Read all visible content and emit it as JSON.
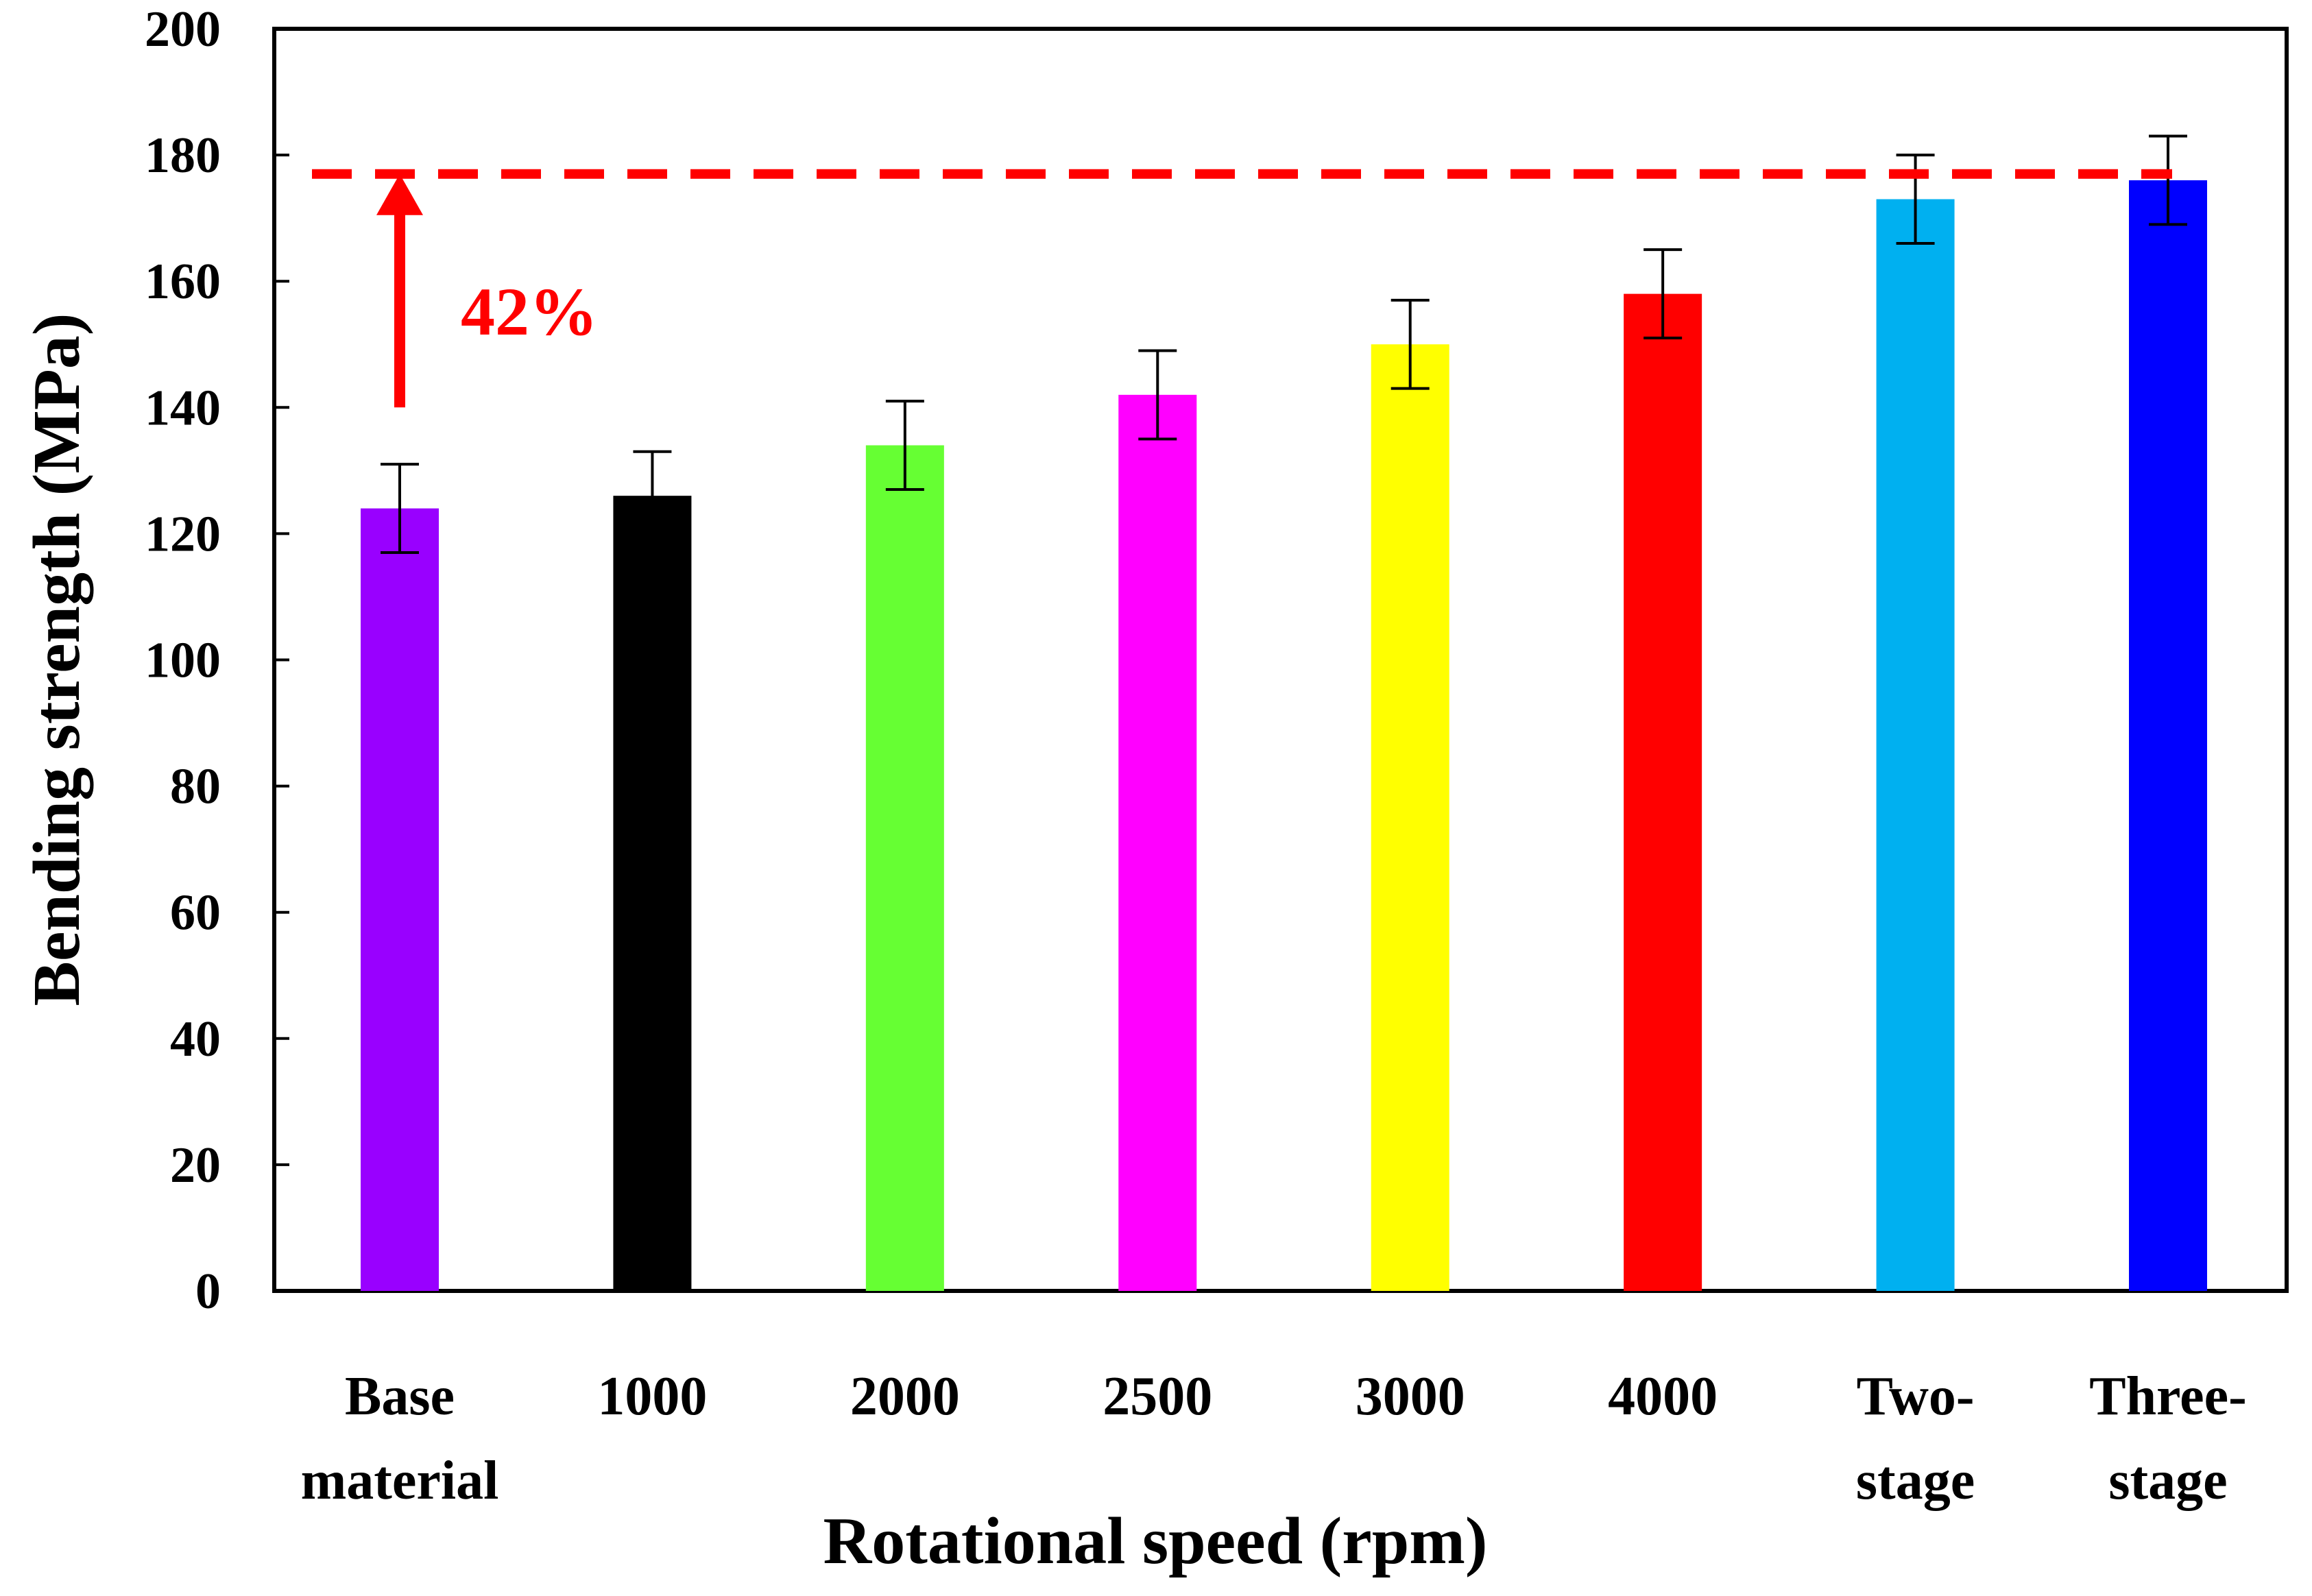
{
  "chart_data": {
    "type": "bar",
    "title": "",
    "xlabel": "Rotational speed (rpm)",
    "ylabel": "Bending strength (MPa)",
    "ylim": [
      0,
      200
    ],
    "yticks": [
      0,
      20,
      40,
      60,
      80,
      100,
      120,
      140,
      160,
      180,
      200
    ],
    "grid": false,
    "categories": [
      [
        "Base",
        "material"
      ],
      [
        "1000"
      ],
      [
        "2000"
      ],
      [
        "2500"
      ],
      [
        "3000"
      ],
      [
        "4000"
      ],
      [
        "Two-",
        "stage"
      ],
      [
        "Three-",
        "stage"
      ]
    ],
    "values": [
      124,
      126,
      134,
      142,
      150,
      158,
      173,
      176
    ],
    "errors": [
      7,
      7,
      7,
      7,
      7,
      7,
      7,
      7
    ],
    "colors": [
      "#9900FF",
      "#000000",
      "#66FF33",
      "#FF00FF",
      "#FFFF00",
      "#FF0000",
      "#00B0F0",
      "#0000FF"
    ],
    "reference_line": {
      "value": 177,
      "color": "#FF0000",
      "style": "dashed"
    },
    "annotation": {
      "text": "42%",
      "color": "#FF0000",
      "arrow_from": 140,
      "arrow_to": 177
    }
  }
}
